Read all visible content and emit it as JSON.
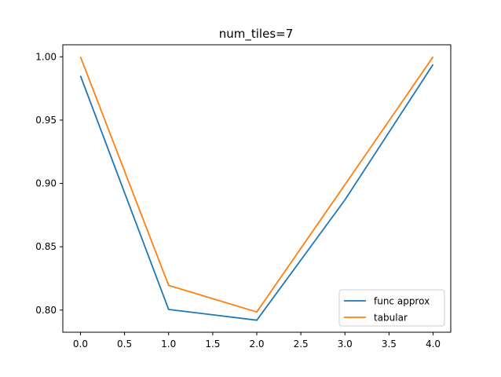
{
  "chart_data": {
    "type": "line",
    "title": "num_tiles=7",
    "xlabel": "",
    "ylabel": "",
    "x": [
      0,
      1,
      2,
      3,
      4
    ],
    "xlim": [
      -0.2,
      4.2
    ],
    "ylim": [
      0.7825,
      1.0095
    ],
    "x_ticks": [
      0.0,
      0.5,
      1.0,
      1.5,
      2.0,
      2.5,
      3.0,
      3.5,
      4.0
    ],
    "x_tick_labels": [
      "0.0",
      "0.5",
      "1.0",
      "1.5",
      "2.0",
      "2.5",
      "3.0",
      "3.5",
      "4.0"
    ],
    "y_ticks": [
      0.8,
      0.85,
      0.9,
      0.95,
      1.0
    ],
    "y_tick_labels": [
      "0.80",
      "0.85",
      "0.90",
      "0.95",
      "1.00"
    ],
    "grid": false,
    "legend_position": "lower right",
    "series": [
      {
        "name": "func approx",
        "color": "#1f77b4",
        "values": [
          0.985,
          0.8005,
          0.792,
          0.887,
          0.994
        ]
      },
      {
        "name": "tabular",
        "color": "#ff7f0e",
        "values": [
          1.0,
          0.8195,
          0.7985,
          0.899,
          1.0
        ]
      }
    ]
  }
}
